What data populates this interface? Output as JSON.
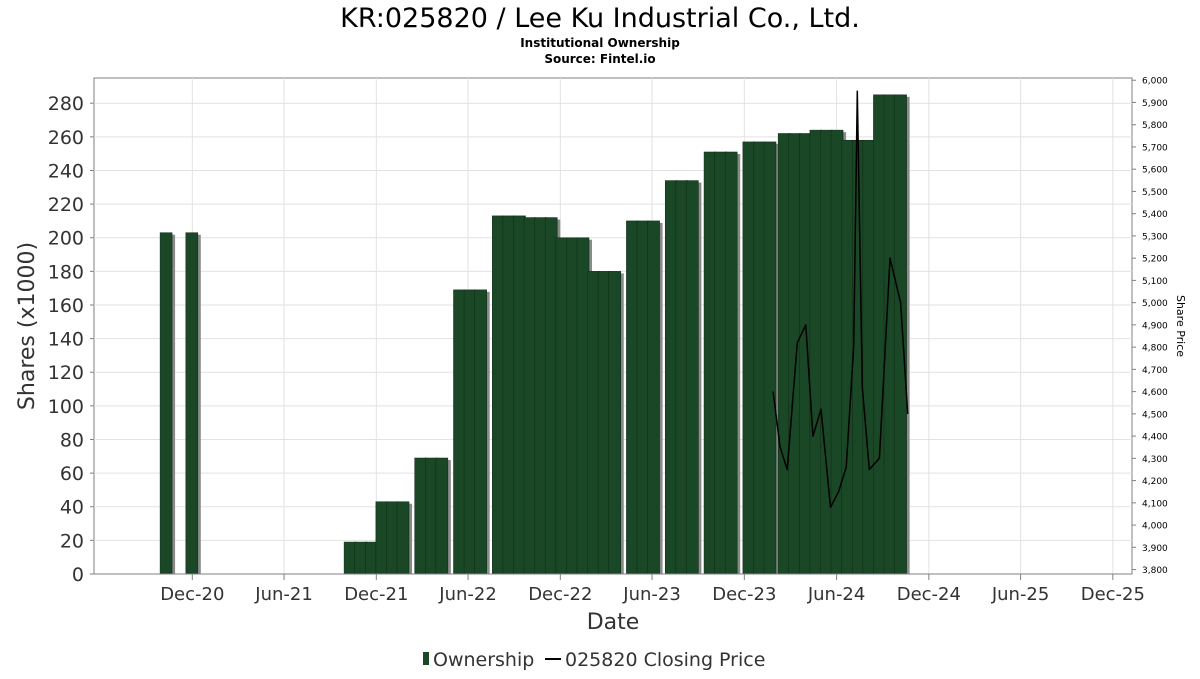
{
  "chart_data": {
    "type": "bar",
    "title": "KR:025820 / Lee Ku Industrial Co., Ltd.",
    "subtitle": "Institutional Ownership",
    "source": "Source: Fintel.io",
    "xlabel": "Date",
    "ylabel": "Shares (x1000)",
    "y2label": "Share Price",
    "ylim": [
      0,
      295
    ],
    "y2lim": [
      3780,
      6010
    ],
    "grid": true,
    "legend_position": "bottom-center",
    "x_ticks": [
      {
        "date": "2020-12-01",
        "label": "Dec-20"
      },
      {
        "date": "2021-06-01",
        "label": "Jun-21"
      },
      {
        "date": "2021-12-01",
        "label": "Dec-21"
      },
      {
        "date": "2022-06-01",
        "label": "Jun-22"
      },
      {
        "date": "2022-12-01",
        "label": "Dec-22"
      },
      {
        "date": "2023-06-01",
        "label": "Jun-23"
      },
      {
        "date": "2023-12-01",
        "label": "Dec-23"
      },
      {
        "date": "2024-06-01",
        "label": "Jun-24"
      },
      {
        "date": "2024-12-01",
        "label": "Dec-24"
      },
      {
        "date": "2025-06-01",
        "label": "Jun-25"
      },
      {
        "date": "2025-12-01",
        "label": "Dec-25"
      }
    ],
    "y_ticks": [
      0,
      20,
      40,
      60,
      80,
      100,
      120,
      140,
      160,
      180,
      200,
      220,
      240,
      260,
      280
    ],
    "y2_ticks": [
      "3,800",
      "3,900",
      "4,000",
      "4,100",
      "4,200",
      "4,300",
      "4,400",
      "4,500",
      "4,600",
      "4,700",
      "4,800",
      "4,900",
      "5,000",
      "5,100",
      "5,200",
      "5,300",
      "5,400",
      "5,500",
      "5,600",
      "5,700",
      "5,800",
      "5,900",
      "6,000"
    ],
    "series": [
      {
        "name": "Ownership",
        "color": "#1a4726",
        "points": [
          {
            "date": "2020-10-10",
            "value": 203
          },
          {
            "date": "2020-11-30",
            "value": 203
          },
          {
            "date": "2021-10-10",
            "value": 19
          },
          {
            "date": "2021-10-31",
            "value": 19
          },
          {
            "date": "2021-11-21",
            "value": 19
          },
          {
            "date": "2021-12-12",
            "value": 43
          },
          {
            "date": "2022-01-02",
            "value": 43
          },
          {
            "date": "2022-01-23",
            "value": 43
          },
          {
            "date": "2022-02-27",
            "value": 69
          },
          {
            "date": "2022-03-20",
            "value": 69
          },
          {
            "date": "2022-04-10",
            "value": 69
          },
          {
            "date": "2022-05-15",
            "value": 169
          },
          {
            "date": "2022-06-05",
            "value": 169
          },
          {
            "date": "2022-06-26",
            "value": 169
          },
          {
            "date": "2022-07-31",
            "value": 213
          },
          {
            "date": "2022-08-21",
            "value": 213
          },
          {
            "date": "2022-09-11",
            "value": 213
          },
          {
            "date": "2022-10-02",
            "value": 212
          },
          {
            "date": "2022-10-23",
            "value": 212
          },
          {
            "date": "2022-11-13",
            "value": 212
          },
          {
            "date": "2022-12-04",
            "value": 200
          },
          {
            "date": "2022-12-25",
            "value": 200
          },
          {
            "date": "2023-01-15",
            "value": 200
          },
          {
            "date": "2023-02-05",
            "value": 180
          },
          {
            "date": "2023-02-26",
            "value": 180
          },
          {
            "date": "2023-03-19",
            "value": 180
          },
          {
            "date": "2023-04-23",
            "value": 210
          },
          {
            "date": "2023-05-14",
            "value": 210
          },
          {
            "date": "2023-06-04",
            "value": 210
          },
          {
            "date": "2023-07-09",
            "value": 234
          },
          {
            "date": "2023-07-30",
            "value": 234
          },
          {
            "date": "2023-08-20",
            "value": 234
          },
          {
            "date": "2023-09-24",
            "value": 251
          },
          {
            "date": "2023-10-15",
            "value": 251
          },
          {
            "date": "2023-11-05",
            "value": 251
          },
          {
            "date": "2023-12-10",
            "value": 257
          },
          {
            "date": "2023-12-31",
            "value": 257
          },
          {
            "date": "2024-01-21",
            "value": 257
          },
          {
            "date": "2024-02-18",
            "value": 262
          },
          {
            "date": "2024-03-10",
            "value": 262
          },
          {
            "date": "2024-03-31",
            "value": 262
          },
          {
            "date": "2024-04-21",
            "value": 264
          },
          {
            "date": "2024-05-12",
            "value": 264
          },
          {
            "date": "2024-06-02",
            "value": 264
          },
          {
            "date": "2024-06-23",
            "value": 258
          },
          {
            "date": "2024-07-14",
            "value": 258
          },
          {
            "date": "2024-08-04",
            "value": 258
          },
          {
            "date": "2024-08-25",
            "value": 285
          },
          {
            "date": "2024-09-15",
            "value": 285
          },
          {
            "date": "2024-10-06",
            "value": 285
          }
        ]
      },
      {
        "name": "025820 Closing Price",
        "color": "#000000",
        "points": [
          {
            "date": "2024-01-27",
            "value": 4600
          },
          {
            "date": "2024-02-10",
            "value": 4350
          },
          {
            "date": "2024-02-24",
            "value": 4250
          },
          {
            "date": "2024-03-15",
            "value": 4820
          },
          {
            "date": "2024-04-01",
            "value": 4900
          },
          {
            "date": "2024-04-15",
            "value": 4400
          },
          {
            "date": "2024-05-01",
            "value": 4520
          },
          {
            "date": "2024-05-20",
            "value": 4080
          },
          {
            "date": "2024-06-05",
            "value": 4150
          },
          {
            "date": "2024-06-20",
            "value": 4260
          },
          {
            "date": "2024-07-05",
            "value": 4800
          },
          {
            "date": "2024-07-12",
            "value": 5950
          },
          {
            "date": "2024-07-22",
            "value": 4620
          },
          {
            "date": "2024-08-05",
            "value": 4250
          },
          {
            "date": "2024-08-25",
            "value": 4300
          },
          {
            "date": "2024-09-15",
            "value": 5200
          },
          {
            "date": "2024-10-06",
            "value": 5000
          },
          {
            "date": "2024-10-20",
            "value": 4500
          }
        ]
      }
    ]
  }
}
